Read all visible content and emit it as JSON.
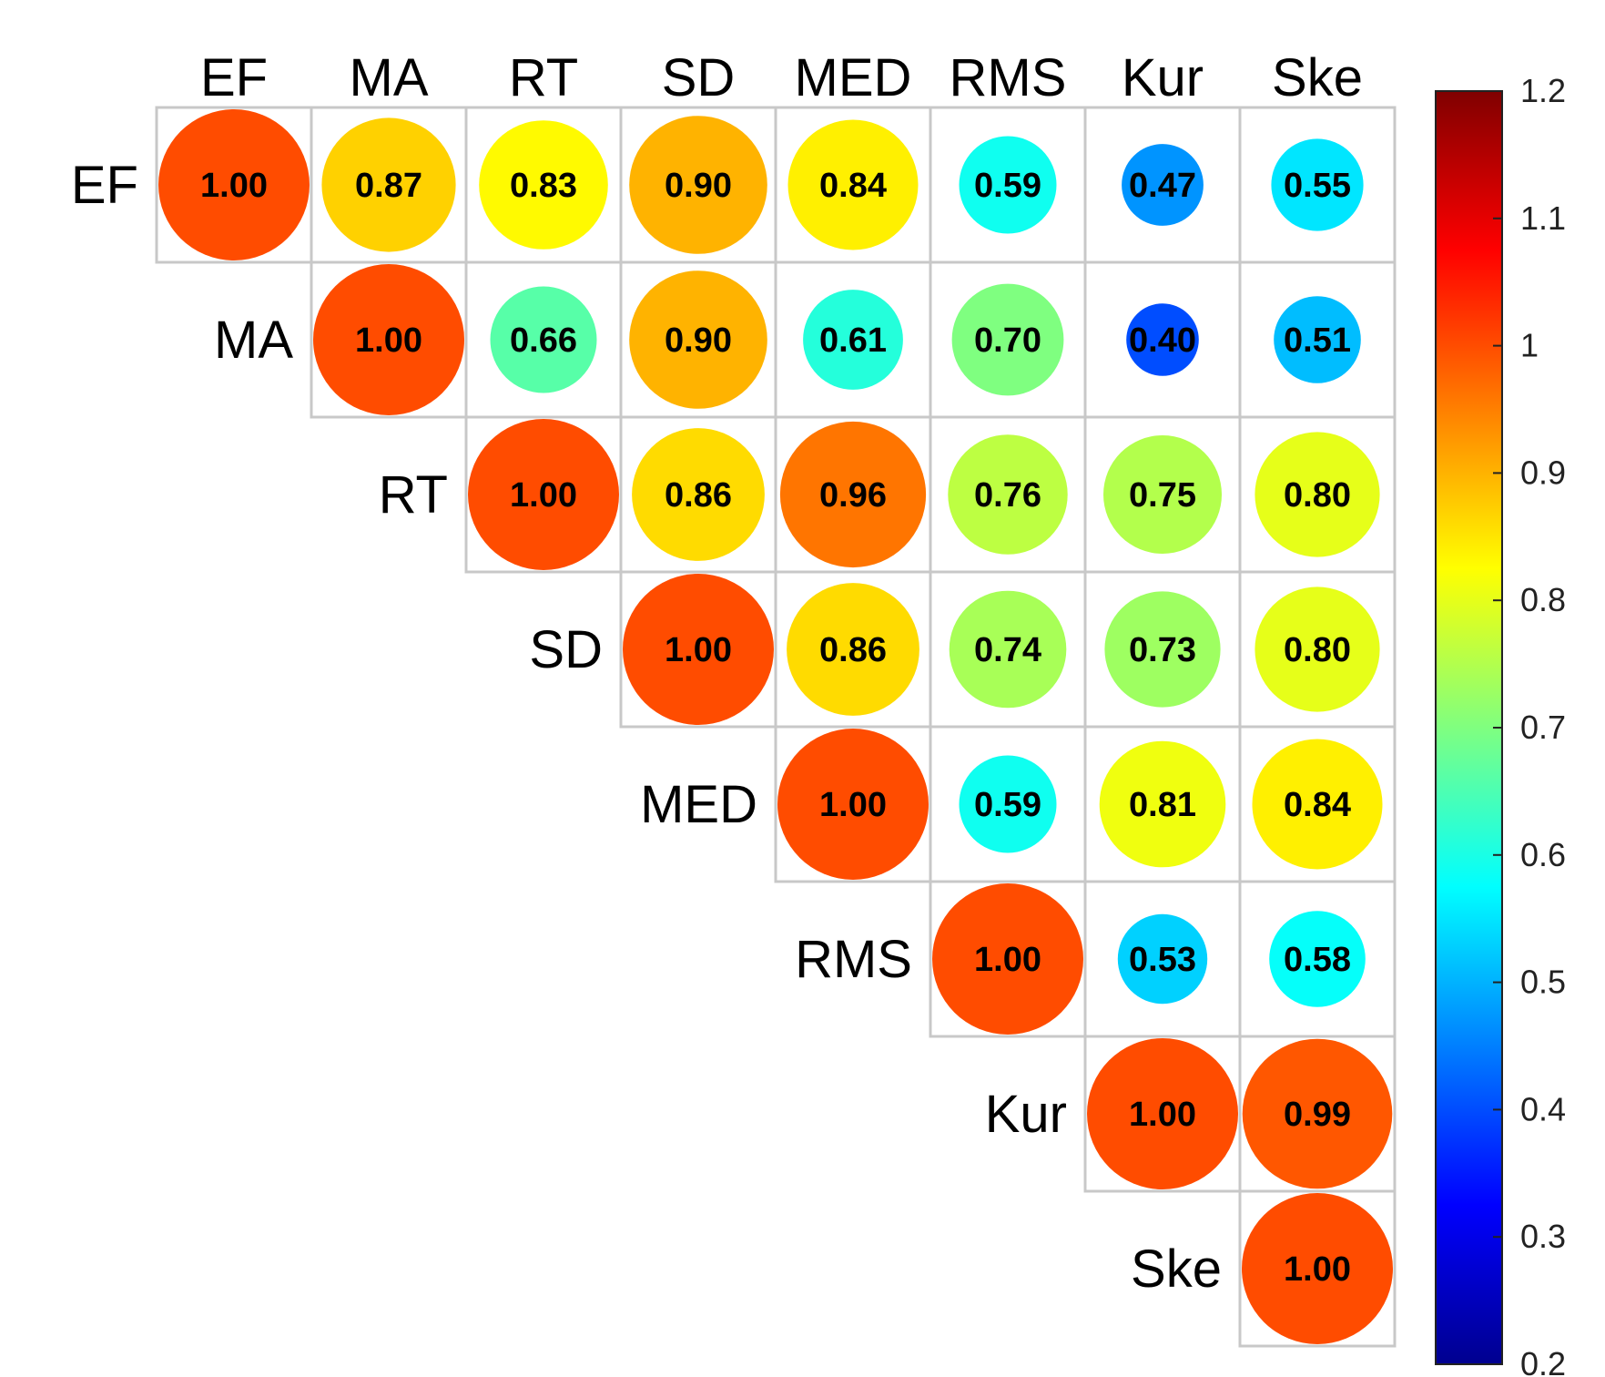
{
  "chart_data": {
    "type": "heatmap",
    "variables": [
      "EF",
      "MA",
      "RT",
      "SD",
      "MED",
      "RMS",
      "Kur",
      "Ske"
    ],
    "matrix_upper": [
      [
        1.0,
        0.87,
        0.83,
        0.9,
        0.84,
        0.59,
        0.47,
        0.55
      ],
      [
        null,
        1.0,
        0.66,
        0.9,
        0.61,
        0.7,
        0.4,
        0.51
      ],
      [
        null,
        null,
        1.0,
        0.86,
        0.96,
        0.76,
        0.75,
        0.8
      ],
      [
        null,
        null,
        null,
        1.0,
        0.86,
        0.74,
        0.73,
        0.8
      ],
      [
        null,
        null,
        null,
        null,
        1.0,
        0.59,
        0.81,
        0.84
      ],
      [
        null,
        null,
        null,
        null,
        null,
        1.0,
        0.53,
        0.58
      ],
      [
        null,
        null,
        null,
        null,
        null,
        null,
        1.0,
        0.99
      ],
      [
        null,
        null,
        null,
        null,
        null,
        null,
        null,
        1.0
      ]
    ],
    "value_labels": [
      [
        "1.00",
        "0.87",
        "0.83",
        "0.90",
        "0.84",
        "0.59",
        "0.47",
        "0.55"
      ],
      [
        null,
        "1.00",
        "0.66",
        "0.90",
        "0.61",
        "0.70",
        "0.40",
        "0.51"
      ],
      [
        null,
        null,
        "1.00",
        "0.86",
        "0.96",
        "0.76",
        "0.75",
        "0.80"
      ],
      [
        null,
        null,
        null,
        "1.00",
        "0.86",
        "0.74",
        "0.73",
        "0.80"
      ],
      [
        null,
        null,
        null,
        null,
        "1.00",
        "0.59",
        "0.81",
        "0.84"
      ],
      [
        null,
        null,
        null,
        null,
        null,
        "1.00",
        "0.53",
        "0.58"
      ],
      [
        null,
        null,
        null,
        null,
        null,
        null,
        "1.00",
        "0.99"
      ],
      [
        null,
        null,
        null,
        null,
        null,
        null,
        null,
        "1.00"
      ]
    ],
    "colorbar": {
      "range": [
        0.2,
        1.2
      ],
      "ticks": [
        "1.2",
        "1.1",
        "1",
        "0.9",
        "0.8",
        "0.7",
        "0.6",
        "0.5",
        "0.4",
        "0.3",
        "0.2"
      ],
      "colormap": "jet",
      "colors": [
        "#00008f",
        "#0000ff",
        "#00ffff",
        "#ffff00",
        "#ff0000",
        "#800000"
      ]
    },
    "grid": true,
    "legend": "colorbar-right",
    "marker": "circle-sized-by-value"
  }
}
